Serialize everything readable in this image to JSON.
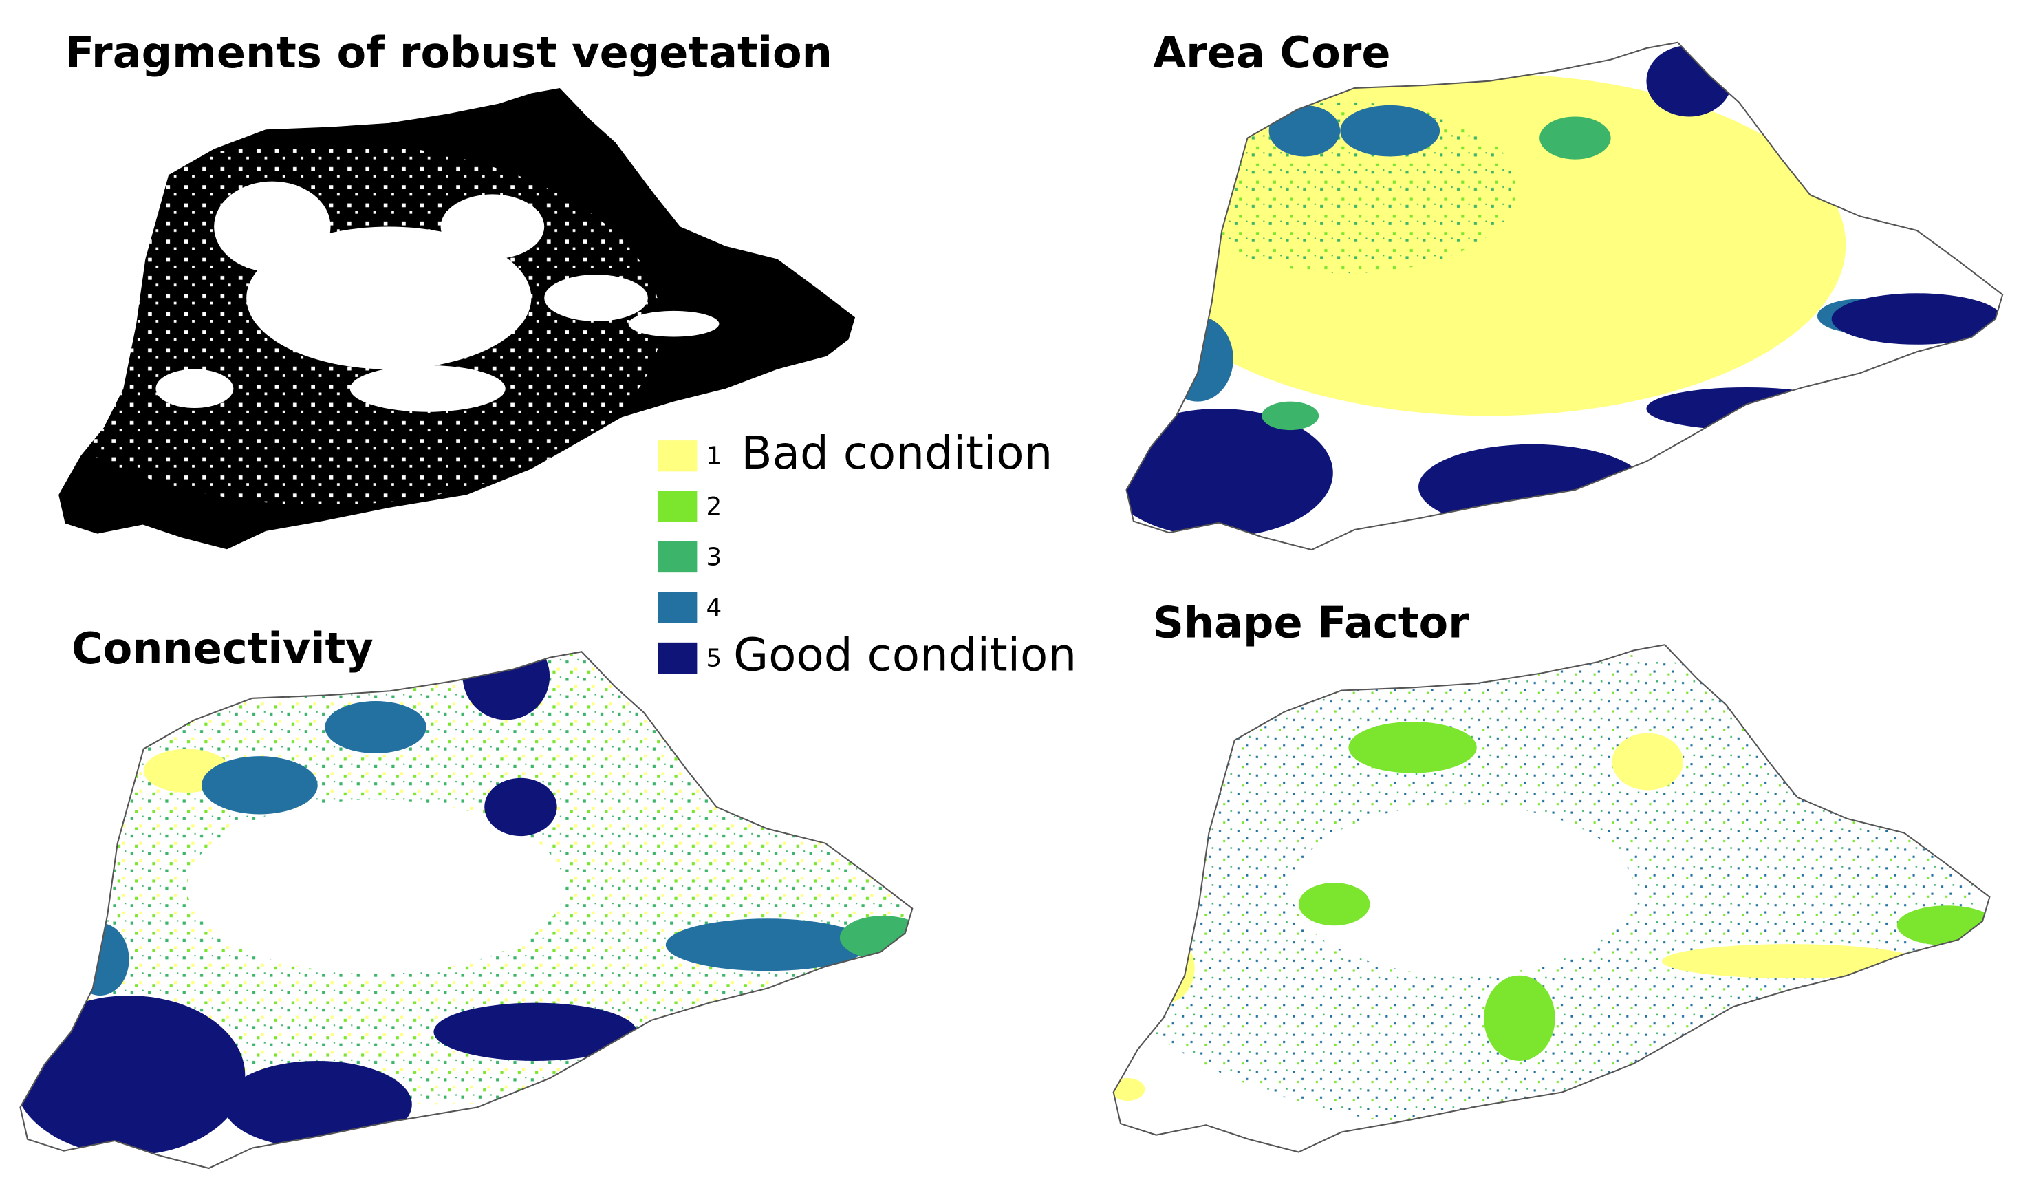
{
  "panels": [
    {
      "title": "Fragments of robust vegetation"
    },
    {
      "title": "Area Core"
    },
    {
      "title": "Connectivity"
    },
    {
      "title": "Shape Factor"
    }
  ],
  "legend": {
    "items": [
      {
        "label": "1",
        "color": "#ffff80"
      },
      {
        "label": "2",
        "color": "#7ce62e"
      },
      {
        "label": "3",
        "color": "#3cb46a"
      },
      {
        "label": "4",
        "color": "#2371a0"
      },
      {
        "label": "5",
        "color": "#0e1478"
      }
    ],
    "low_label": "Bad condition",
    "high_label": "Good condition"
  }
}
